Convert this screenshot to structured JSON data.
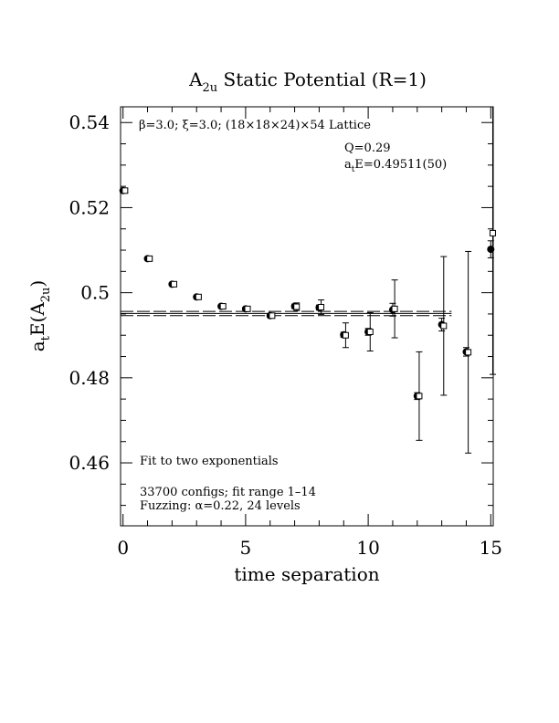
{
  "chart_data": {
    "type": "scatter",
    "title_main": "A",
    "title_sub": "2u",
    "title_rest": " Static Potential (R=1)",
    "xlabel": "time separation",
    "ylabel_a": "a",
    "ylabel_t": "t",
    "ylabel_b": "E(A",
    "ylabel_sub": "2u",
    "ylabel_c": ")",
    "xlim": [
      -0.1,
      15.1
    ],
    "ylim": [
      0.4452,
      0.5437
    ],
    "xticks": [
      0,
      5,
      10,
      15
    ],
    "xtick_labels": [
      "0",
      "5",
      "10",
      "15"
    ],
    "yticks": [
      0.46,
      0.48,
      0.5,
      0.52,
      0.54
    ],
    "ytick_labels": [
      "0.46",
      "0.48",
      "0.5",
      "0.52",
      "0.54"
    ],
    "lattice_label": "β=3.0; ξ=3.0; (18×18×24)×54 Lattice",
    "q_label": "Q=0.29",
    "energy_label_a": "a",
    "energy_label_t": "t",
    "energy_label_rest": "E=0.49511(50)",
    "fit_label": "Fit to two exponentials",
    "configs_label": "33700 configs; fit range 1–14",
    "fuzzing_label": "Fuzzing: α=0.22, 24 levels",
    "fit": {
      "value": 0.49511,
      "error": 0.0005,
      "x_start": -0.1,
      "x_end": 13.4
    },
    "series": [
      {
        "marker": "filled-circle",
        "x": [
          0,
          1,
          2,
          3,
          4,
          5,
          6,
          7,
          8,
          9,
          10,
          11,
          12,
          13,
          14,
          15
        ],
        "y": [
          0.524,
          0.508,
          0.502,
          0.499,
          0.4968,
          0.4962,
          0.4946,
          0.4968,
          0.4965,
          0.4901,
          0.4908,
          0.496,
          0.4757,
          0.4925,
          0.4861,
          0.5102
        ],
        "err": [
          0.0002,
          0.0002,
          0.0002,
          0.0002,
          0.0003,
          0.0004,
          0.0004,
          0.0005,
          0.0006,
          0.0006,
          0.0008,
          0.0015,
          0.0008,
          0.0015,
          0.001,
          0.002
        ]
      },
      {
        "marker": "open-square",
        "x": [
          0.08,
          1.08,
          2.08,
          3.08,
          4.08,
          5.08,
          6.08,
          7.08,
          8.08,
          9.08,
          10.08,
          11.08,
          12.08,
          13.08,
          14.08,
          15.08
        ],
        "y": [
          0.524,
          0.508,
          0.502,
          0.499,
          0.4968,
          0.4962,
          0.4946,
          0.4967,
          0.4966,
          0.49,
          0.4908,
          0.4962,
          0.4757,
          0.4922,
          0.486,
          0.514
        ],
        "err": [
          0.0004,
          0.0003,
          0.0003,
          0.0003,
          0.0004,
          0.0005,
          0.0005,
          0.0009,
          0.0017,
          0.0029,
          0.0045,
          0.0068,
          0.0104,
          0.0163,
          0.0237,
          0.0332
        ]
      }
    ]
  }
}
